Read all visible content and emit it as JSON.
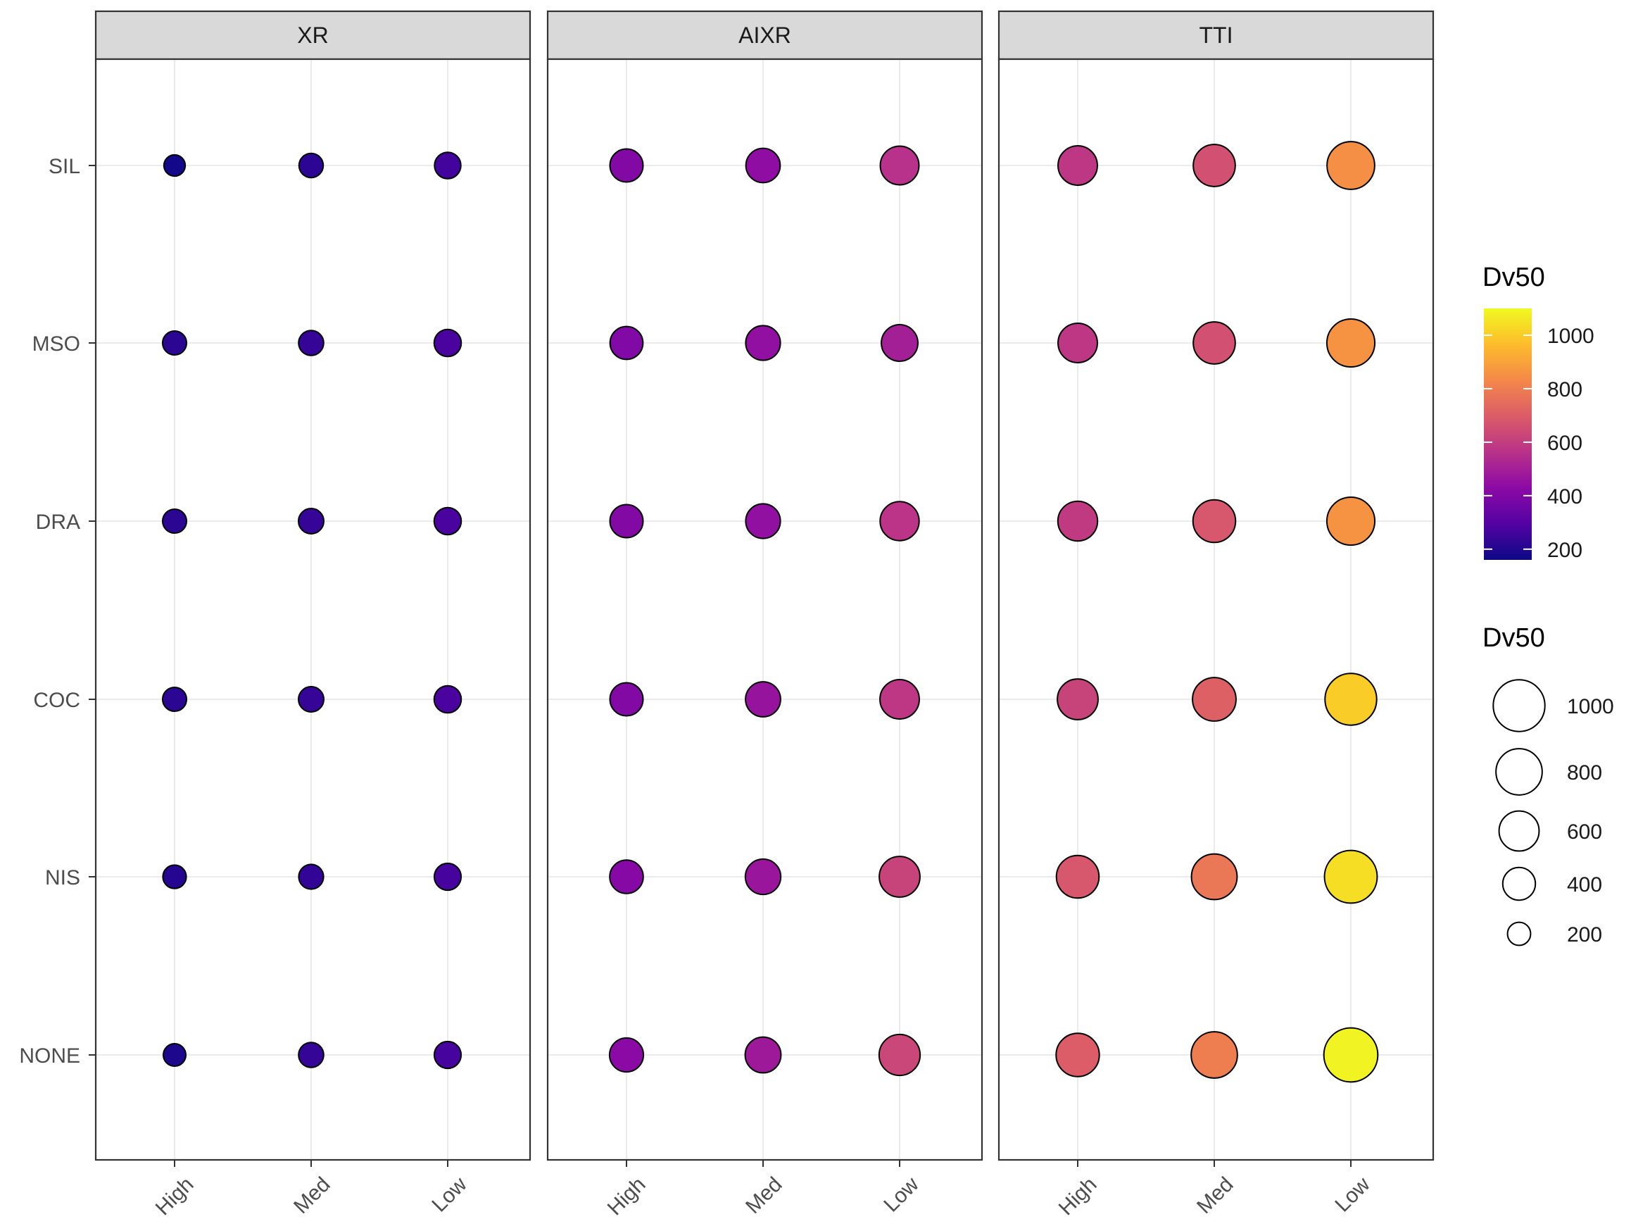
{
  "chart_data": {
    "type": "scatter",
    "facets": [
      "XR",
      "AIXR",
      "TTI"
    ],
    "x_categories": [
      "High",
      "Med",
      "Low"
    ],
    "y_categories": [
      "SIL",
      "MSO",
      "DRA",
      "COC",
      "NIS",
      "NONE"
    ],
    "grid": true,
    "legend_position": "right",
    "color_legend": {
      "title": "Dv50",
      "range": [
        160,
        1100
      ],
      "ticks": [
        200,
        400,
        600,
        800,
        1000
      ],
      "palette": "plasma"
    },
    "size_legend": {
      "title": "Dv50",
      "breaks": [
        1000,
        800,
        600,
        400,
        200
      ]
    },
    "values": {
      "XR": {
        "SIL": [
          170,
          220,
          260
        ],
        "MSO": [
          215,
          235,
          275
        ],
        "DRA": [
          215,
          240,
          275
        ],
        "COC": [
          215,
          240,
          275
        ],
        "NIS": [
          205,
          230,
          270
        ],
        "NONE": [
          190,
          235,
          270
        ]
      },
      "AIXR": {
        "SIL": [
          410,
          440,
          560
        ],
        "MSO": [
          405,
          450,
          500
        ],
        "DRA": [
          410,
          450,
          570
        ],
        "COC": [
          410,
          460,
          580
        ],
        "NIS": [
          420,
          470,
          620
        ],
        "NONE": [
          430,
          480,
          630
        ]
      },
      "TTI": {
        "SIL": [
          580,
          660,
          850
        ],
        "MSO": [
          580,
          660,
          860
        ],
        "DRA": [
          590,
          680,
          860
        ],
        "COC": [
          620,
          710,
          1000
        ],
        "NIS": [
          680,
          780,
          1040
        ],
        "NONE": [
          700,
          800,
          1090
        ]
      }
    }
  }
}
